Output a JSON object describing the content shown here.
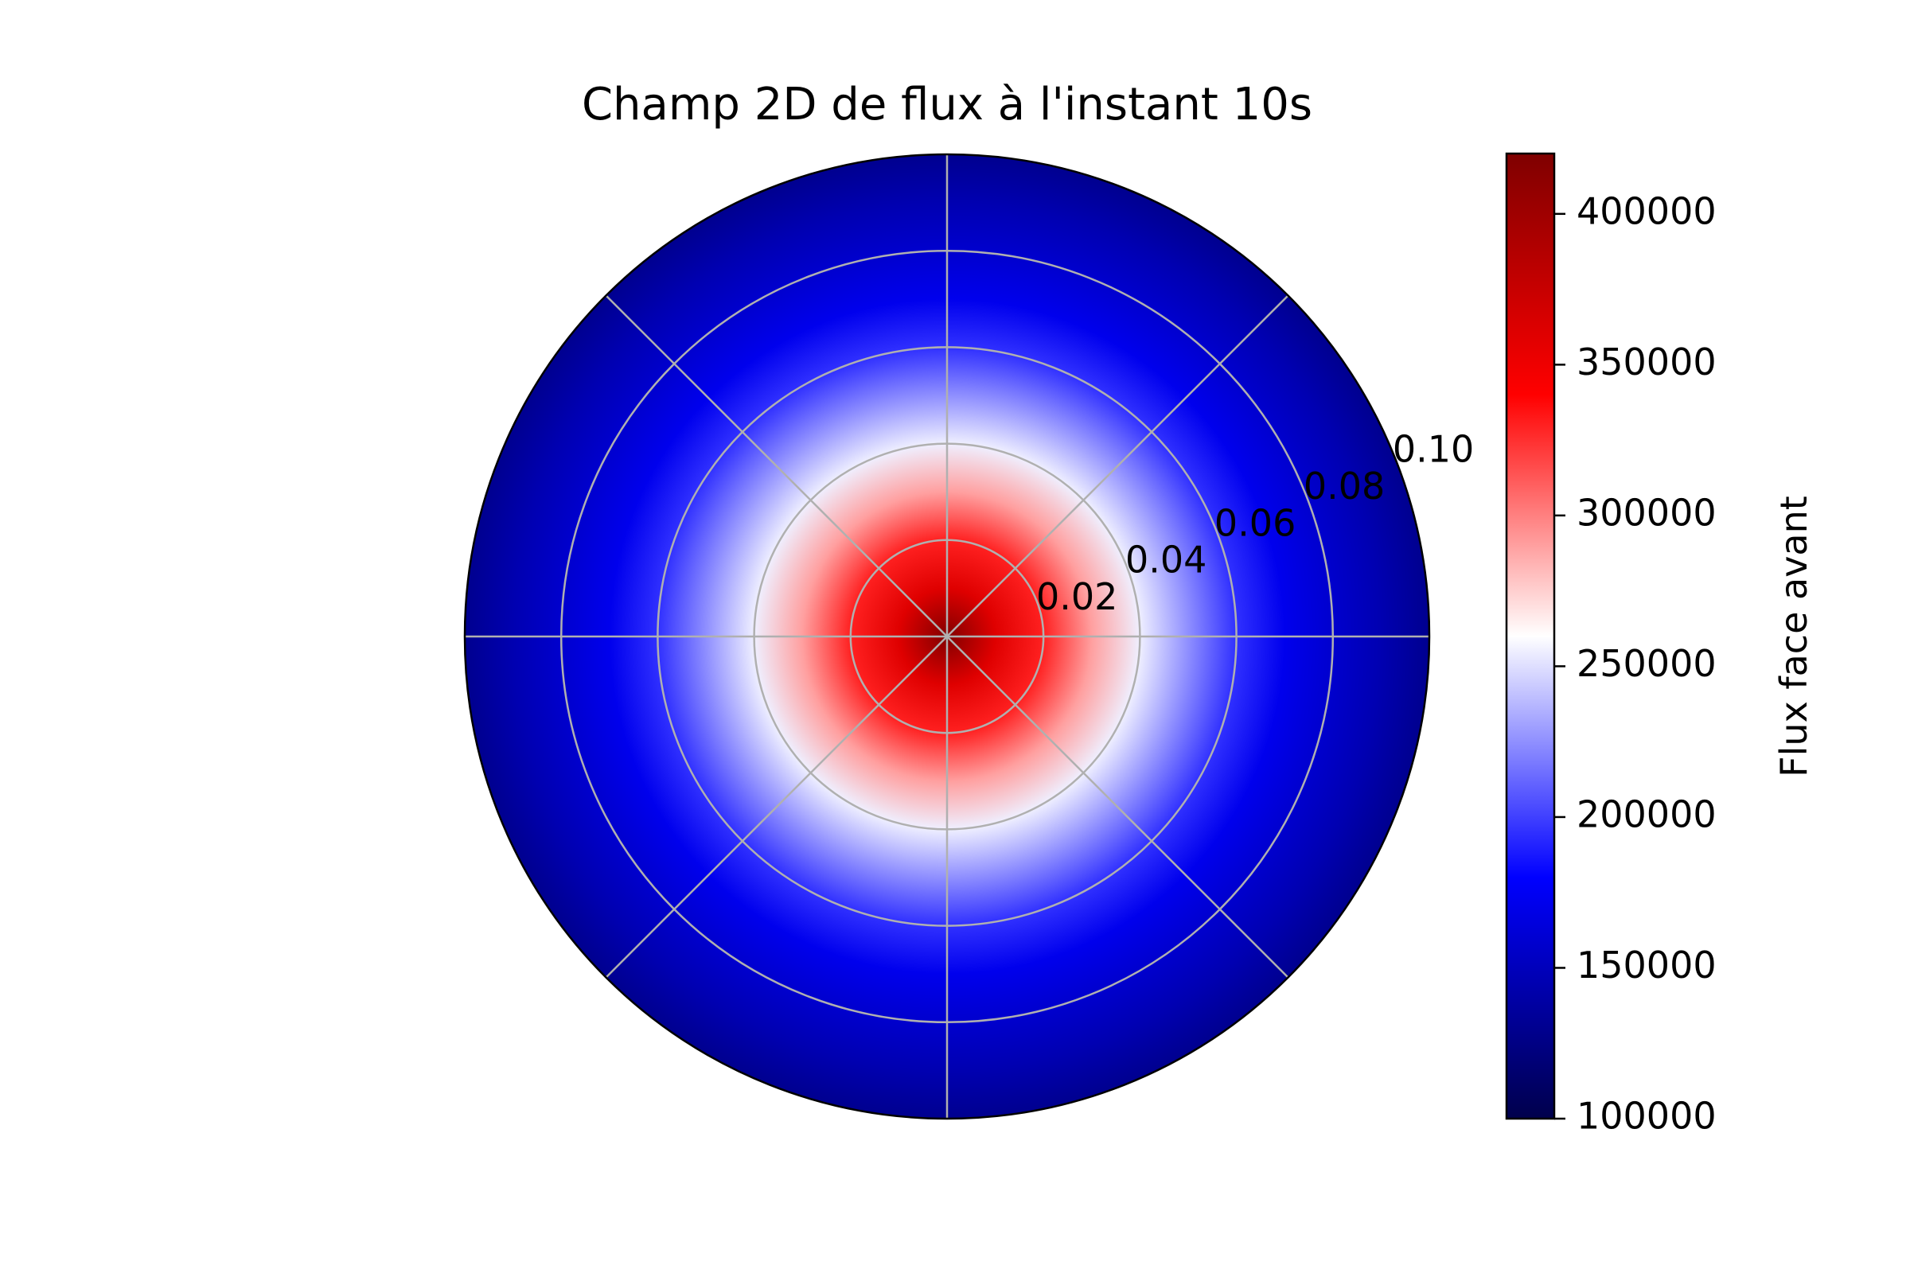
{
  "chart_data": {
    "type": "heatmap",
    "projection": "polar",
    "title": "Champ 2D de flux à l'instant 10s",
    "r_ticks": [
      0.02,
      0.04,
      0.06,
      0.08,
      0.1
    ],
    "r_tick_labels": [
      "0.02",
      "0.04",
      "0.06",
      "0.08",
      "0.10"
    ],
    "r_max": 0.1,
    "theta_gridlines_deg": [
      0,
      45,
      90,
      135,
      180,
      225,
      270,
      315
    ],
    "grid": true,
    "colormap": "seismic",
    "colormap_stops": [
      "#00004c",
      "#0000ff",
      "#ffffff",
      "#ff0000",
      "#7f0000"
    ],
    "radial_profile": {
      "r": [
        0.0,
        0.01,
        0.02,
        0.03,
        0.04,
        0.05,
        0.06,
        0.07,
        0.08,
        0.09,
        0.1
      ],
      "values": [
        418000,
        360000,
        330000,
        290000,
        255000,
        225000,
        195000,
        172000,
        158000,
        145000,
        130000
      ]
    },
    "colorbar": {
      "label": "Flux face avant",
      "min": 100000,
      "max": 420000,
      "ticks": [
        100000,
        150000,
        200000,
        250000,
        300000,
        350000,
        400000
      ],
      "tick_labels": [
        "100000",
        "150000",
        "200000",
        "250000",
        "300000",
        "350000",
        "400000"
      ],
      "placement": "right"
    }
  }
}
